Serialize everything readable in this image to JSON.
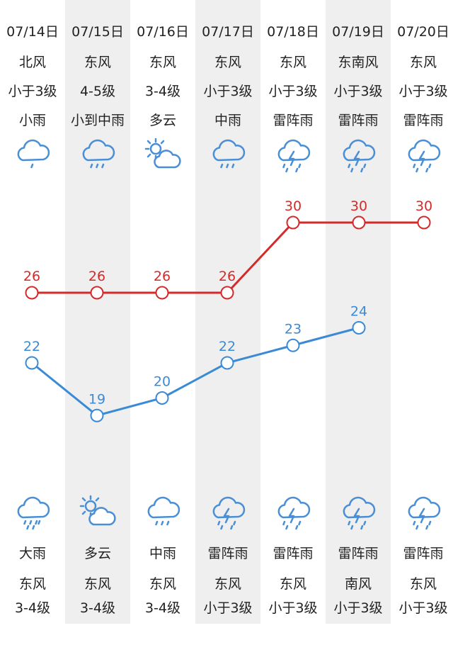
{
  "days": [
    {
      "date": "07/14日",
      "day_wind": "北风",
      "day_level": "小于3级",
      "day_weather": "小雨",
      "day_icon": "light-rain-icon",
      "night_weather": "大雨",
      "night_icon": "heavy-rain-icon",
      "night_wind": "东风",
      "night_level": "3-4级",
      "high": 26,
      "low": 22
    },
    {
      "date": "07/15日",
      "day_wind": "东风",
      "day_level": "4-5级",
      "day_weather": "小到中雨",
      "day_icon": "rain-icon",
      "night_weather": "多云",
      "night_icon": "partly-cloudy-icon",
      "night_wind": "东风",
      "night_level": "3-4级",
      "high": 26,
      "low": 19
    },
    {
      "date": "07/16日",
      "day_wind": "东风",
      "day_level": "3-4级",
      "day_weather": "多云",
      "day_icon": "partly-cloudy-icon",
      "night_weather": "中雨",
      "night_icon": "rain-icon",
      "night_wind": "东风",
      "night_level": "3-4级",
      "high": 26,
      "low": 20
    },
    {
      "date": "07/17日",
      "day_wind": "东风",
      "day_level": "小于3级",
      "day_weather": "中雨",
      "day_icon": "rain-icon",
      "night_weather": "雷阵雨",
      "night_icon": "thunderstorm-icon",
      "night_wind": "东风",
      "night_level": "小于3级",
      "high": 26,
      "low": 22
    },
    {
      "date": "07/18日",
      "day_wind": "东风",
      "day_level": "小于3级",
      "day_weather": "雷阵雨",
      "day_icon": "thunderstorm-icon",
      "night_weather": "雷阵雨",
      "night_icon": "thunderstorm-icon",
      "night_wind": "东风",
      "night_level": "小于3级",
      "high": 30,
      "low": 23
    },
    {
      "date": "07/19日",
      "day_wind": "东南风",
      "day_level": "小于3级",
      "day_weather": "雷阵雨",
      "day_icon": "thunderstorm-icon",
      "night_weather": "雷阵雨",
      "night_icon": "thunderstorm-icon",
      "night_wind": "南风",
      "night_level": "小于3级",
      "high": 30,
      "low": 24
    },
    {
      "date": "07/20日",
      "day_wind": "东风",
      "day_level": "小于3级",
      "day_weather": "雷阵雨",
      "day_icon": "thunderstorm-icon",
      "night_weather": "雷阵雨",
      "night_icon": "thunderstorm-icon",
      "night_wind": "东风",
      "night_level": "小于3级",
      "high": 30,
      "low": null
    }
  ],
  "colors": {
    "high": "#d42a2a",
    "low": "#3b8ad6",
    "icon": "#4a8fd6",
    "shade": "#efefef",
    "sun": "#6aa8e0"
  }
}
